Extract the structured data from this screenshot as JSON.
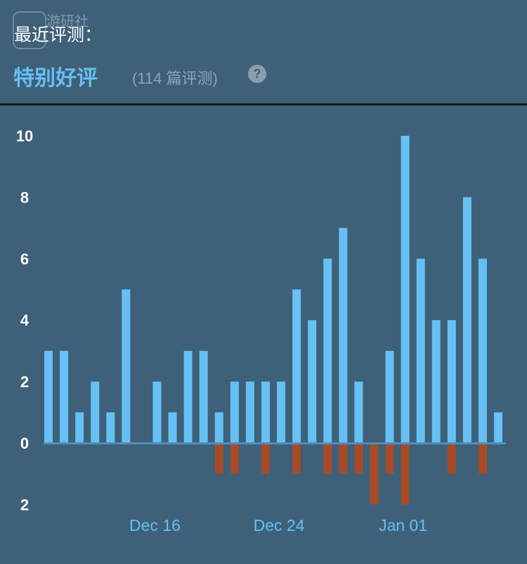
{
  "logo_text": "游研社",
  "header": {
    "label": "最近评测：",
    "rating": "特别好评",
    "count": "(114 篇评测)",
    "help": "?"
  },
  "colors": {
    "positive": "#66c0f4",
    "negative": "#a64b26",
    "background": "#3e6079"
  },
  "chart_data": {
    "type": "bar",
    "title": "",
    "x": [
      "Dec 09",
      "Dec 10",
      "Dec 11",
      "Dec 12",
      "Dec 13",
      "Dec 14",
      "Dec 15",
      "Dec 16",
      "Dec 17",
      "Dec 18",
      "Dec 19",
      "Dec 20",
      "Dec 21",
      "Dec 22",
      "Dec 23",
      "Dec 24",
      "Dec 25",
      "Dec 26",
      "Dec 27",
      "Dec 28",
      "Dec 29",
      "Dec 30",
      "Dec 31",
      "Jan 01",
      "Jan 02",
      "Jan 03",
      "Jan 04",
      "Jan 05",
      "Jan 06",
      "Jan 07"
    ],
    "series": [
      {
        "values": [
          3,
          3,
          1,
          2,
          1,
          5,
          0,
          2,
          1,
          3,
          3,
          1,
          2,
          2,
          2,
          2,
          5,
          4,
          6,
          7,
          2,
          0,
          3,
          10,
          6,
          4,
          4,
          8,
          6,
          1
        ]
      },
      {
        "values": [
          0,
          0,
          0,
          0,
          0,
          0,
          0,
          0,
          0,
          0,
          0,
          -1,
          -1,
          0,
          -1,
          0,
          -1,
          0,
          -1,
          -1,
          -1,
          -2,
          -1,
          -2,
          0,
          0,
          -1,
          0,
          -1,
          0
        ]
      }
    ],
    "ylim": [
      -2,
      10
    ],
    "yticks": [
      {
        "value": 10,
        "label": "10"
      },
      {
        "value": 8,
        "label": "8"
      },
      {
        "value": 6,
        "label": "6"
      },
      {
        "value": 4,
        "label": "4"
      },
      {
        "value": 2,
        "label": "2"
      },
      {
        "value": 0,
        "label": "0"
      },
      {
        "value": -2,
        "label": "2"
      }
    ],
    "xticks": [
      {
        "index": 7,
        "label": "Dec 16"
      },
      {
        "index": 15,
        "label": "Dec 24"
      },
      {
        "index": 23,
        "label": "Jan 01"
      }
    ],
    "grid": false
  }
}
